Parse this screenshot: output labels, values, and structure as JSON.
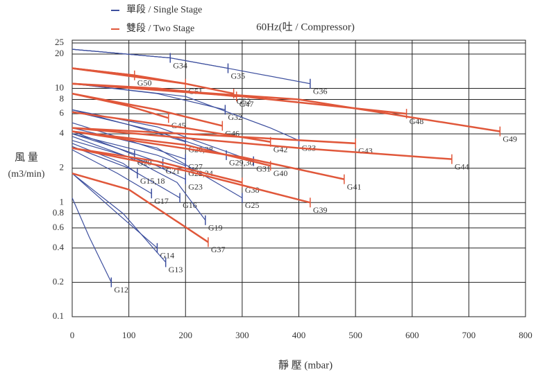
{
  "chart_data": {
    "type": "line",
    "title": "60Hz(吐 / Compressor)",
    "x_label": "靜 壓 (mbar)",
    "y_label": "風 量",
    "y_unit": "(m3/min)",
    "legend": [
      {
        "label": "單段 / Single Stage",
        "color": "#3d4f9e"
      },
      {
        "label": "雙段 / Two Stage",
        "color": "#e0573a"
      }
    ],
    "xlim": [
      0,
      800
    ],
    "xticks": [
      0,
      100,
      200,
      300,
      400,
      500,
      600,
      700,
      800
    ],
    "ylim": [
      0.1,
      25
    ],
    "yticks": [
      0.1,
      0.2,
      0.4,
      0.6,
      0.8,
      1,
      2,
      4,
      6,
      8,
      10,
      20,
      25
    ],
    "log_y": true,
    "grid": true,
    "series": [
      {
        "name": "G12",
        "color": "#3d4f9e",
        "x": [
          0,
          30,
          69
        ],
        "values": [
          1.1,
          0.5,
          0.2
        ]
      },
      {
        "name": "G14",
        "color": "#3d4f9e",
        "x": [
          0,
          80,
          150
        ],
        "values": [
          1.8,
          0.8,
          0.4
        ]
      },
      {
        "name": "G13",
        "color": "#3d4f9e",
        "x": [
          0,
          90,
          165
        ],
        "values": [
          1.8,
          0.8,
          0.3
        ]
      },
      {
        "name": "G17",
        "color": "#3d4f9e",
        "x": [
          0,
          80,
          140
        ],
        "values": [
          2.9,
          1.8,
          1.2
        ]
      },
      {
        "name": "G16",
        "color": "#3d4f9e",
        "x": [
          0,
          100,
          190
        ],
        "values": [
          3.1,
          2.0,
          1.1
        ]
      },
      {
        "name": "G15,18",
        "color": "#3d4f9e",
        "x": [
          0,
          90,
          115
        ],
        "values": [
          3.3,
          2.2,
          1.8
        ]
      },
      {
        "name": "G19",
        "color": "#3d4f9e",
        "x": [
          0,
          100,
          185,
          235
        ],
        "values": [
          3.8,
          2.5,
          1.5,
          0.7
        ]
      },
      {
        "name": "G23",
        "color": "#3d4f9e",
        "x": [
          0,
          140,
          200
        ],
        "values": [
          3.5,
          2.2,
          1.6
        ]
      },
      {
        "name": "G22,24",
        "color": "#3d4f9e",
        "x": [
          0,
          150,
          200
        ],
        "values": [
          4,
          2.6,
          2.1
        ]
      },
      {
        "name": "G21",
        "color": "#3d4f9e",
        "x": [
          0,
          80,
          160
        ],
        "values": [
          4,
          3,
          2.2
        ]
      },
      {
        "name": "G20",
        "color": "#3d4f9e",
        "x": [
          0,
          80,
          110
        ],
        "values": [
          4.2,
          3.0,
          2.6
        ]
      },
      {
        "name": "G27",
        "color": "#3d4f9e",
        "x": [
          0,
          100,
          200
        ],
        "values": [
          5,
          3.5,
          2.4
        ]
      },
      {
        "name": "G26,28",
        "color": "#3d4f9e",
        "x": [
          0,
          100,
          200
        ],
        "values": [
          6.5,
          4.8,
          3.4
        ]
      },
      {
        "name": "G25",
        "color": "#3d4f9e",
        "x": [
          0,
          150,
          300
        ],
        "values": [
          4.5,
          3,
          1.1
        ]
      },
      {
        "name": "G29,30",
        "color": "#3d4f9e",
        "x": [
          0,
          150,
          272
        ],
        "values": [
          6.3,
          4.2,
          2.6
        ]
      },
      {
        "name": "G31",
        "color": "#3d4f9e",
        "x": [
          0,
          150,
          320
        ],
        "values": [
          6.5,
          4.6,
          2.3
        ]
      },
      {
        "name": "G32",
        "color": "#3d4f9e",
        "x": [
          0,
          150,
          270
        ],
        "values": [
          11,
          9,
          6.5
        ]
      },
      {
        "name": "G33",
        "color": "#3d4f9e",
        "x": [
          0,
          200,
          350,
          400
        ],
        "values": [
          11,
          8.5,
          4.5,
          3.5
        ]
      },
      {
        "name": "G34",
        "color": "#3d4f9e",
        "x": [
          0,
          173
        ],
        "values": [
          22,
          18.5
        ]
      },
      {
        "name": "G35",
        "color": "#3d4f9e",
        "x": [
          0,
          173,
          275
        ],
        "values": [
          22,
          18.5,
          15
        ]
      },
      {
        "name": "G36",
        "color": "#3d4f9e",
        "x": [
          0,
          173,
          275,
          420
        ],
        "values": [
          22,
          18.5,
          15,
          11
        ]
      },
      {
        "name": "G50",
        "color": "#e0573a",
        "x": [
          0,
          110
        ],
        "values": [
          15,
          13
        ]
      },
      {
        "name": "G51",
        "color": "#e0573a",
        "x": [
          0,
          110,
          200
        ],
        "values": [
          15,
          13,
          11
        ]
      },
      {
        "name": "G52",
        "color": "#e0573a",
        "x": [
          0,
          200,
          285
        ],
        "values": [
          15,
          11,
          9
        ]
      },
      {
        "name": "G47",
        "color": "#e0573a",
        "x": [
          0,
          150,
          290
        ],
        "values": [
          11,
          10,
          8.5
        ]
      },
      {
        "name": "G48",
        "color": "#e0573a",
        "x": [
          0,
          300,
          590
        ],
        "values": [
          11,
          8.5,
          6
        ]
      },
      {
        "name": "G49",
        "color": "#e0573a",
        "x": [
          0,
          400,
          755
        ],
        "values": [
          11,
          8,
          4.2
        ]
      },
      {
        "name": "G45",
        "color": "#e0573a",
        "x": [
          0,
          100,
          170
        ],
        "values": [
          9,
          7,
          5.5
        ]
      },
      {
        "name": "G46",
        "color": "#e0573a",
        "x": [
          0,
          150,
          265
        ],
        "values": [
          9,
          6.5,
          4.7
        ]
      },
      {
        "name": "G42",
        "color": "#e0573a",
        "x": [
          0,
          200,
          350
        ],
        "values": [
          6.2,
          4.5,
          3.4
        ]
      },
      {
        "name": "G43",
        "color": "#e0573a",
        "x": [
          0,
          200,
          500
        ],
        "values": [
          4.5,
          4,
          3.3
        ]
      },
      {
        "name": "G44",
        "color": "#e0573a",
        "x": [
          0,
          400,
          670
        ],
        "values": [
          4.5,
          3.0,
          2.4
        ]
      },
      {
        "name": "G40",
        "color": "#e0573a",
        "x": [
          0,
          200,
          350
        ],
        "values": [
          4.2,
          3.2,
          2.1
        ]
      },
      {
        "name": "G41",
        "color": "#e0573a",
        "x": [
          0,
          300,
          480
        ],
        "values": [
          4.2,
          2.5,
          1.6
        ]
      },
      {
        "name": "G38",
        "color": "#e0573a",
        "x": [
          0,
          150,
          300
        ],
        "values": [
          3,
          2.3,
          1.5
        ]
      },
      {
        "name": "G39",
        "color": "#e0573a",
        "x": [
          0,
          200,
          420
        ],
        "values": [
          3,
          1.9,
          1
        ]
      },
      {
        "name": "G37",
        "color": "#e0573a",
        "x": [
          0,
          100,
          240
        ],
        "values": [
          1.8,
          1.3,
          0.45
        ]
      }
    ]
  }
}
